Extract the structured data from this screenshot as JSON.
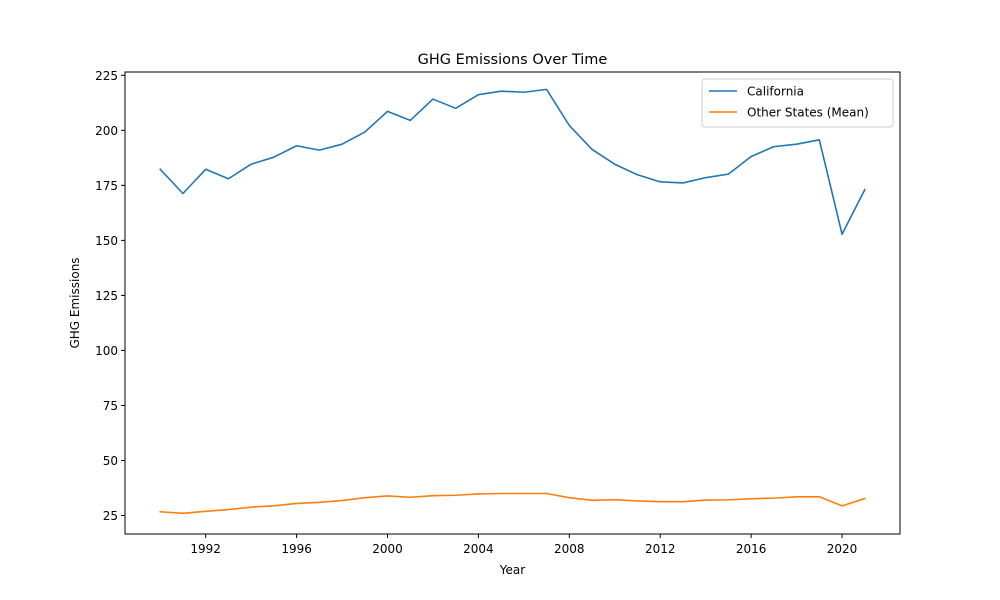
{
  "chart_data": {
    "type": "line",
    "title": "GHG Emissions Over Time",
    "xlabel": "Year",
    "ylabel": "GHG Emissions",
    "xlim": [
      1988.45,
      2022.55
    ],
    "ylim": [
      16.6,
      226.5
    ],
    "xticks": [
      1992,
      1996,
      2000,
      2004,
      2008,
      2012,
      2016,
      2020
    ],
    "yticks": [
      25,
      50,
      75,
      100,
      125,
      150,
      175,
      200,
      225
    ],
    "grid": false,
    "legend_position": "top-right",
    "x": [
      1990,
      1991,
      1992,
      1993,
      1994,
      1995,
      1996,
      1997,
      1998,
      1999,
      2000,
      2001,
      2002,
      2003,
      2004,
      2005,
      2006,
      2007,
      2008,
      2009,
      2010,
      2011,
      2012,
      2013,
      2014,
      2015,
      2016,
      2017,
      2018,
      2019,
      2020,
      2021
    ],
    "series": [
      {
        "name": "California",
        "color": "#1f77b4",
        "values": [
          182.3,
          171.3,
          182.3,
          178.0,
          184.6,
          187.8,
          193.0,
          191.0,
          193.7,
          199.2,
          208.6,
          204.5,
          214.2,
          210.0,
          216.2,
          217.8,
          217.3,
          218.6,
          202.2,
          191.3,
          184.6,
          179.8,
          176.6,
          176.1,
          178.5,
          180.1,
          188.1,
          192.6,
          193.7,
          195.7,
          152.8,
          173.0
        ]
      },
      {
        "name": "Other States (Mean)",
        "color": "#ff7f0e",
        "values": [
          26.7,
          26.0,
          26.9,
          27.7,
          28.8,
          29.4,
          30.5,
          31.0,
          31.8,
          33.1,
          33.9,
          33.3,
          34.0,
          34.2,
          34.8,
          35.0,
          35.0,
          35.0,
          33.1,
          31.9,
          32.2,
          31.6,
          31.3,
          31.3,
          32.0,
          32.1,
          32.6,
          32.9,
          33.5,
          33.5,
          29.4,
          32.7
        ]
      }
    ]
  }
}
